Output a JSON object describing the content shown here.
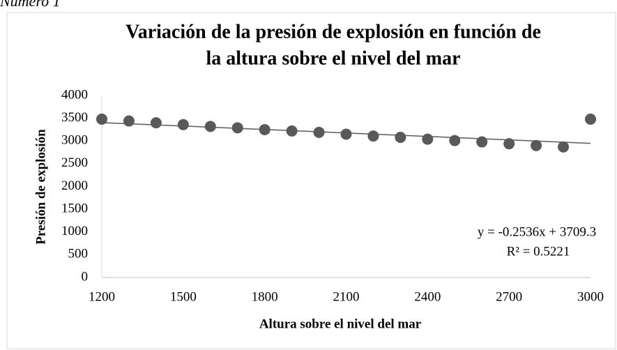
{
  "caption": "Número 1",
  "chart_data": {
    "type": "scatter",
    "title": [
      "Variación de la presión de explosión en función de",
      "la altura sobre el nivel del mar"
    ],
    "x_label": "Altura sobre el nivel del mar",
    "y_label": "Presión de explosión",
    "x": [
      1200,
      1300,
      1400,
      1500,
      1600,
      1700,
      1800,
      1900,
      2000,
      2100,
      2200,
      2300,
      2400,
      2500,
      2600,
      2700,
      2800,
      2900,
      3000
    ],
    "values": [
      3480,
      3440,
      3400,
      3360,
      3320,
      3290,
      3250,
      3220,
      3190,
      3150,
      3110,
      3080,
      3040,
      3010,
      2980,
      2940,
      2900,
      2870,
      3480
    ],
    "color": "#595959",
    "xlim": [
      1200,
      3000
    ],
    "xticks": [
      1200,
      1500,
      1800,
      2100,
      2400,
      2700,
      3000
    ],
    "ylim": [
      0,
      4000
    ],
    "yticks": [
      0,
      500,
      1000,
      1500,
      2000,
      2500,
      3000,
      3500,
      4000
    ],
    "grid": false,
    "trendline": {
      "slope": -0.2536,
      "intercept": 3709.3,
      "r_squared": 0.5221,
      "equation": "y = -0.2536x + 3709.3",
      "r_squared_label": "R² = 0.5221"
    }
  }
}
